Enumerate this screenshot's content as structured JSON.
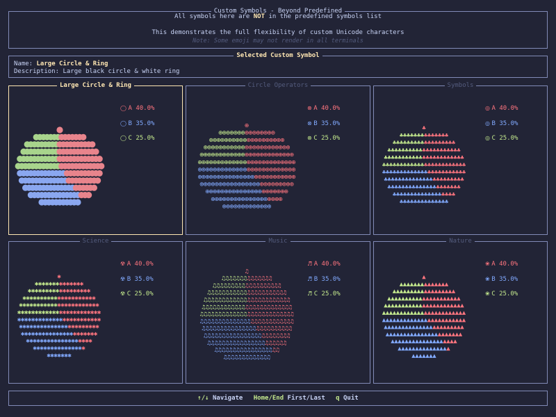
{
  "header": {
    "title": "Custom Symbols - Beyond Predefined",
    "line1_pre": "All symbols here are ",
    "line1_not": "NOT",
    "line1_post": " in the predefined symbols list",
    "line2": "This demonstrates the full flexibility of custom Unicode characters",
    "line3": "Note: Some emoji may not render in all terminals"
  },
  "selected": {
    "title": "Selected Custom Symbol",
    "name_label": "Name: ",
    "name_value": "Large Circle & Ring",
    "description": "Description: Large black circle & white ring"
  },
  "colors": {
    "A": "#ff757f",
    "B": "#82aaff",
    "C": "#c3e88d",
    "A_soft": "#e8848c",
    "B_soft": "#8aa7f0",
    "C_soft": "#a8d48c"
  },
  "panels": [
    {
      "title": "Large Circle & Ring",
      "active": true,
      "symbol": "◯",
      "legend_symbol": "◯",
      "chart_data": {
        "type": "pie",
        "series": [
          {
            "name": "A",
            "label": "A 40.0%",
            "value": 40.0
          },
          {
            "name": "B",
            "label": "B 35.0%",
            "value": 35.0
          },
          {
            "name": "C",
            "label": "C 25.0%",
            "value": 25.0
          }
        ]
      }
    },
    {
      "title": "Circle Operators",
      "active": false,
      "symbol": "⊕",
      "legend_symbols": [
        "⊗",
        "⊗",
        "⊗"
      ],
      "chart_data": {
        "type": "pie",
        "series": [
          {
            "name": "A",
            "label": "A 40.0%",
            "value": 40.0
          },
          {
            "name": "B",
            "label": "B 35.0%",
            "value": 35.0
          },
          {
            "name": "C",
            "label": "C 25.0%",
            "value": 25.0
          }
        ]
      }
    },
    {
      "title": "Symbols",
      "active": false,
      "symbol": "♣",
      "legend_symbols": [
        "◎",
        "◎",
        "◎"
      ],
      "chart_data": {
        "type": "pie",
        "series": [
          {
            "name": "A",
            "label": "A 40.0%",
            "value": 40.0
          },
          {
            "name": "B",
            "label": "B 35.0%",
            "value": 35.0
          },
          {
            "name": "C",
            "label": "C 25.0%",
            "value": 25.0
          }
        ]
      }
    },
    {
      "title": "Science",
      "active": false,
      "symbol": "✱",
      "legend_symbols": [
        "☢",
        "☢",
        "☢"
      ],
      "chart_data": {
        "type": "pie",
        "series": [
          {
            "name": "A",
            "label": "A 40.0%",
            "value": 40.0
          },
          {
            "name": "B",
            "label": "B 35.0%",
            "value": 35.0
          },
          {
            "name": "C",
            "label": "C 25.0%",
            "value": 25.0
          }
        ]
      }
    },
    {
      "title": "Music",
      "active": false,
      "symbol": "♫",
      "legend_symbols": [
        "♬",
        "♬",
        "♬"
      ],
      "chart_data": {
        "type": "pie",
        "series": [
          {
            "name": "A",
            "label": "A 40.0%",
            "value": 40.0
          },
          {
            "name": "B",
            "label": "B 35.0%",
            "value": 35.0
          },
          {
            "name": "C",
            "label": "C 25.0%",
            "value": 25.0
          }
        ]
      }
    },
    {
      "title": "Nature",
      "active": false,
      "symbol": "▲",
      "legend_symbols": [
        "❀",
        "❀",
        "❀"
      ],
      "chart_data": {
        "type": "pie",
        "series": [
          {
            "name": "A",
            "label": "A 40.0%",
            "value": 40.0
          },
          {
            "name": "B",
            "label": "B 35.0%",
            "value": 35.0
          },
          {
            "name": "C",
            "label": "C 25.0%",
            "value": 25.0
          }
        ]
      }
    }
  ],
  "footer": {
    "nav_keys": "↑/↓",
    "nav_label": "Navigate",
    "home_keys": "Home/End",
    "home_label": "First/Last",
    "quit_key": "q",
    "quit_label": "Quit"
  }
}
